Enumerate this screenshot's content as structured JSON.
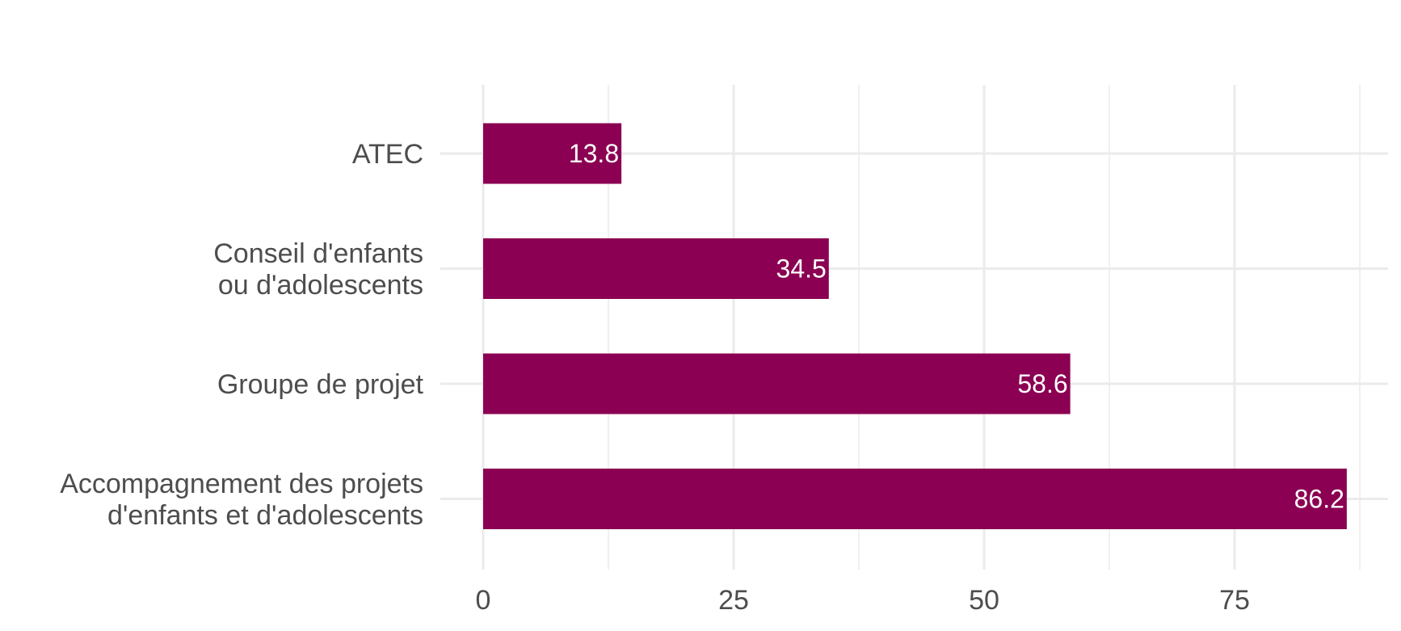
{
  "chart_data": {
    "type": "bar",
    "orientation": "horizontal",
    "categories": [
      [
        "ATEC"
      ],
      [
        "Conseil d'enfants",
        "ou d'adolescents"
      ],
      [
        "Groupe de projet"
      ],
      [
        "Accompagnement des projets",
        "d'enfants et d'adolescents"
      ]
    ],
    "values": [
      13.8,
      34.5,
      58.6,
      86.2
    ],
    "value_labels": [
      "13.8",
      "34.5",
      "58.6",
      "86.2"
    ],
    "x_ticks": [
      0,
      25,
      50,
      75
    ],
    "x_tick_labels": [
      "0",
      "25",
      "50",
      "75"
    ],
    "xlim": [
      0,
      87.5
    ],
    "title": "",
    "xlabel": "",
    "ylabel": "",
    "grid": true,
    "bar_color": "#8b0052",
    "grid_color": "#ebebeb",
    "text_color": "#4d4d4d"
  }
}
